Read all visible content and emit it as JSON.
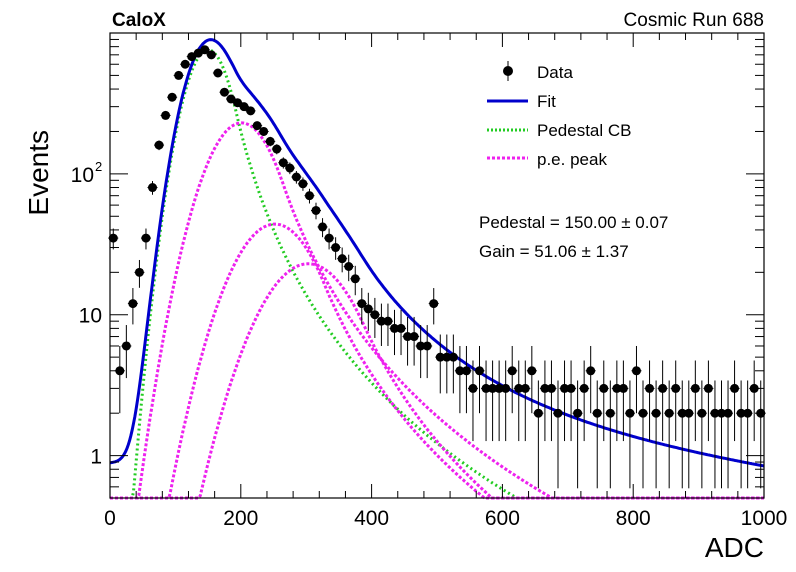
{
  "header": {
    "experiment": "CaloX",
    "run_label": "Cosmic Run 688"
  },
  "chart_data": {
    "type": "scatter",
    "xlabel": "ADC",
    "ylabel": "Events",
    "xlim": [
      0,
      1000
    ],
    "ylim": [
      0.5,
      1000
    ],
    "yscale": "log",
    "x_ticks": [
      "0",
      "200",
      "400",
      "600",
      "800",
      "1000"
    ],
    "y_ticks": [
      {
        "value": 1,
        "label": "1"
      },
      {
        "value": 10,
        "label": "10"
      },
      {
        "value": 100,
        "label": "10",
        "sup": "2"
      }
    ],
    "legend": {
      "position": "top-right",
      "entries": [
        {
          "label": "Data",
          "style": "marker",
          "color": "#000000"
        },
        {
          "label": "Fit",
          "style": "line",
          "color": "#0000cc"
        },
        {
          "label": "Pedestal CB",
          "style": "dotted",
          "color": "#22cc22"
        },
        {
          "label": "p.e. peak",
          "style": "dotted",
          "color": "#ee22ee"
        }
      ]
    },
    "annotations": {
      "pedestal": "Pedestal = 150.00 ± 0.07",
      "gain": "Gain = 51.06 ± 1.37"
    },
    "fit_params": {
      "pedestal": 150.0,
      "pedestal_sigma": 30,
      "gain": 51.06,
      "peak_sigma_scale": 1.0,
      "fit_tail_level": 0.9
    },
    "series": [
      {
        "name": "Data",
        "x": [
          5,
          15,
          25,
          35,
          45,
          55,
          65,
          75,
          85,
          95,
          105,
          115,
          125,
          135,
          145,
          155,
          165,
          175,
          185,
          195,
          205,
          215,
          225,
          235,
          245,
          255,
          265,
          275,
          285,
          295,
          305,
          315,
          325,
          335,
          345,
          355,
          365,
          375,
          385,
          395,
          405,
          415,
          425,
          435,
          445,
          455,
          465,
          475,
          485,
          495,
          505,
          515,
          525,
          535,
          545,
          555,
          565,
          575,
          585,
          595,
          605,
          615,
          625,
          635,
          645,
          655,
          665,
          675,
          685,
          695,
          705,
          715,
          725,
          735,
          745,
          755,
          765,
          775,
          785,
          795,
          805,
          815,
          825,
          835,
          845,
          855,
          865,
          875,
          885,
          895,
          905,
          915,
          925,
          935,
          945,
          955,
          965,
          975,
          985,
          995
        ],
        "y": [
          35,
          4,
          6,
          12,
          20,
          35,
          80,
          160,
          260,
          350,
          500,
          600,
          680,
          720,
          760,
          700,
          520,
          380,
          340,
          320,
          300,
          280,
          220,
          200,
          170,
          150,
          120,
          110,
          95,
          85,
          70,
          55,
          42,
          35,
          30,
          25,
          22,
          18,
          12,
          11,
          10,
          9,
          9,
          8,
          8,
          7,
          7,
          6,
          6,
          12,
          5,
          5,
          5,
          4,
          4,
          3,
          4,
          3,
          3,
          3,
          3,
          4,
          3,
          3,
          4,
          2,
          3,
          3,
          2,
          3,
          3,
          2,
          3,
          4,
          2,
          3,
          2,
          3,
          3,
          2,
          4,
          2,
          3,
          2,
          3,
          2,
          3,
          2,
          2,
          3,
          2,
          3,
          2,
          2,
          2,
          3,
          2,
          2,
          3,
          2
        ]
      }
    ]
  }
}
